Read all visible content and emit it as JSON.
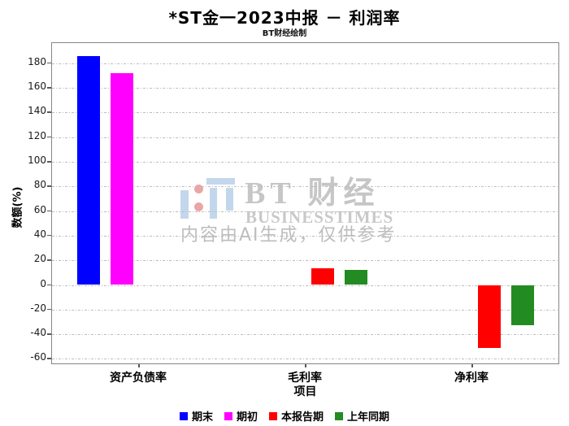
{
  "header": {
    "title": "*ST金一2023中报 － 利润率",
    "subtitle": "BT财经绘制"
  },
  "watermark": {
    "brand_cn": "BT 财经",
    "brand_en": "BUSINESSTIMES",
    "disclaimer": "内容由AI生成，仅供参考"
  },
  "chart_data": {
    "type": "bar",
    "title": "*ST金一2023中报 － 利润率",
    "subtitle": "BT财经绘制",
    "xlabel": "项目",
    "ylabel": "数额(%)",
    "categories": [
      "资产负债率",
      "毛利率",
      "净利率"
    ],
    "series": [
      {
        "name": "期末",
        "color": "#0000ff",
        "values": [
          186.0,
          null,
          null
        ]
      },
      {
        "name": "期初",
        "color": "#ff00ff",
        "values": [
          171.7,
          null,
          null
        ]
      },
      {
        "name": "本报告期",
        "color": "#ff0000",
        "values": [
          null,
          13.8,
          -51.0
        ]
      },
      {
        "name": "上年同期",
        "color": "#228b22",
        "values": [
          null,
          12.2,
          -32.6
        ]
      }
    ],
    "ylim": [
      -60,
      180
    ],
    "ytick_step": 20,
    "grid": true,
    "grid_style": "dashdot",
    "legend_position": "bottom"
  }
}
